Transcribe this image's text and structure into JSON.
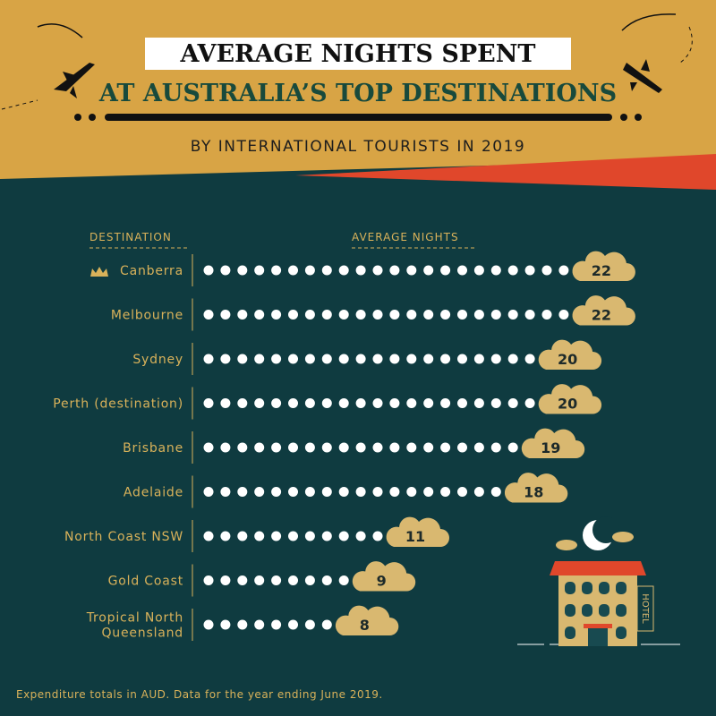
{
  "chart_data": {
    "type": "dot",
    "title": [
      "AVERAGE NIGHTS SPENT",
      "AT AUSTRALIA’S TOP DESTINATIONS"
    ],
    "subtitle": "BY INTERNATIONAL TOURISTS IN 2019",
    "category_header": "DESTINATION",
    "value_header": "AVERAGE NIGHTS",
    "categories": [
      "Canberra",
      "Melbourne",
      "Sydney",
      "Perth (destination)",
      "Brisbane",
      "Adelaide",
      "North Coast NSW",
      "Gold Coast",
      [
        "Tropical North",
        "Queensland"
      ]
    ],
    "values": [
      22,
      22,
      20,
      20,
      19,
      18,
      11,
      9,
      8
    ],
    "color": "#ffffff",
    "label_color": "#d9b870",
    "hotel_sign": "HOTEL",
    "note": "Expenditure totals in AUD. Data for the year ending June 2019."
  }
}
